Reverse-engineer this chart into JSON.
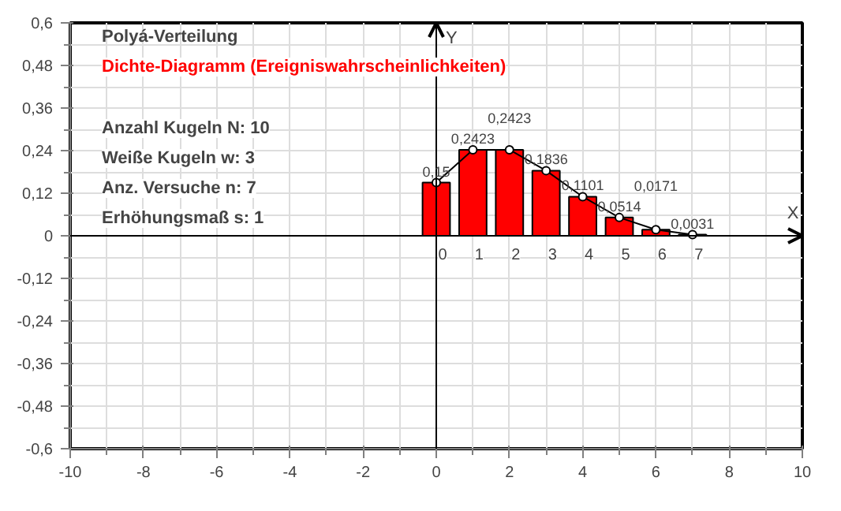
{
  "chart_data": {
    "type": "bar",
    "title": "Polyá-Verteilung",
    "subtitle": "Dichte-Diagramm (Ereigniswahrscheinlichkeiten)",
    "x": [
      0,
      1,
      2,
      3,
      4,
      5,
      6,
      7
    ],
    "series": [
      {
        "color": "#ff0000",
        "values": [
          0.15,
          0.2423,
          0.2423,
          0.1836,
          0.1101,
          0.0514,
          0.0171,
          0.0031
        ],
        "value_labels": [
          "0,15",
          "0,2423",
          "0,2423",
          "0,1836",
          "0,1101",
          "0,0514",
          "0,0171",
          "0,0031"
        ]
      },
      {
        "type": "line",
        "color": "#000000",
        "marker": "circle",
        "values": [
          0.15,
          0.2423,
          0.2423,
          0.1836,
          0.1101,
          0.0514,
          0.0171,
          0.0031
        ]
      }
    ],
    "annotations": [
      "Anzahl Kugeln N: 10",
      "Weiße Kugeln w: 3",
      "Anz. Versuche n: 7",
      "Erhöhungsmaß s: 1",
      "X",
      "Y",
      "0",
      "1",
      "2",
      "3",
      "4",
      "5",
      "6",
      "7"
    ],
    "xlim": [
      -10,
      10
    ],
    "ylim": [
      -0.6,
      0.6
    ],
    "xticks": [
      -10,
      -8,
      -6,
      -4,
      -2,
      0,
      2,
      4,
      6,
      8,
      10
    ],
    "yticks": [
      {
        "value": -0.6,
        "label": "-0,6"
      },
      {
        "value": -0.48,
        "label": "-0,48"
      },
      {
        "value": -0.36,
        "label": "-0,36"
      },
      {
        "value": -0.24,
        "label": "-0,24"
      },
      {
        "value": -0.12,
        "label": "-0,12"
      },
      0,
      {
        "value": 0.12,
        "label": "0,12"
      },
      {
        "value": 0.24,
        "label": "0,24"
      },
      {
        "value": 0.36,
        "label": "0,36"
      },
      {
        "value": 0.48,
        "label": "0,48"
      },
      {
        "value": 0.6,
        "label": "0,6"
      }
    ],
    "grid": true
  }
}
